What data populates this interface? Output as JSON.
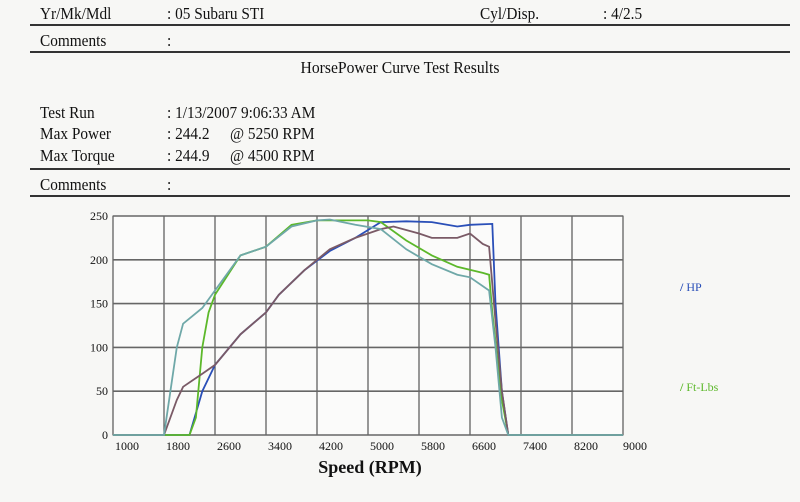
{
  "header": {
    "model_label": "Yr/Mk/Mdl",
    "model_value": ": 05 Subaru STI",
    "cyl_label": "Cyl/Disp.",
    "cyl_value": ": 4/2.5",
    "comments1_label": "Comments",
    "comments1_value": ":"
  },
  "title": "HorsePower Curve Test Results",
  "results": {
    "test_run_label": "Test Run",
    "test_run_value": ": 1/13/2007 9:06:33 AM",
    "max_power_label": "Max Power",
    "max_power_value": ": 244.2",
    "max_power_rpm": "@ 5250  RPM",
    "max_torque_label": "Max Torque",
    "max_torque_value": ": 244.9",
    "max_torque_rpm": "@ 4500  RPM",
    "comments2_label": "Comments",
    "comments2_value": ":"
  },
  "chart_data": {
    "type": "line",
    "xlabel": "Speed (RPM)",
    "ylabel": "",
    "xlim": [
      1000,
      9000
    ],
    "ylim": [
      0,
      250
    ],
    "xticks": [
      1000,
      1800,
      2600,
      3400,
      4200,
      5000,
      5800,
      6600,
      7400,
      8200,
      9000
    ],
    "yticks": [
      0,
      50,
      100,
      150,
      200,
      250
    ],
    "grid": true,
    "legend_placement": "right",
    "legend": [
      {
        "label": "HP",
        "color": "#2a4fb8"
      },
      {
        "label": "Ft-Lbs",
        "color": "#5cb82a"
      }
    ],
    "series": [
      {
        "name": "HP",
        "color": "#2a4fb8",
        "x": [
          1000,
          2200,
          2400,
          2600,
          3000,
          3400,
          3600,
          4000,
          4400,
          4800,
          5200,
          5600,
          6000,
          6400,
          6600,
          6950,
          7000,
          7100,
          7200,
          9000
        ],
        "y": [
          0,
          0,
          50,
          80,
          115,
          140,
          160,
          188,
          210,
          225,
          243,
          244,
          243,
          238,
          240,
          241,
          150,
          50,
          0,
          0
        ]
      },
      {
        "name": "Ft-Lbs",
        "color": "#5cb82a",
        "x": [
          1000,
          2200,
          2300,
          2400,
          2500,
          2600,
          3000,
          3400,
          3800,
          4200,
          5000,
          5200,
          5600,
          6000,
          6400,
          6800,
          6900,
          6950,
          7100,
          7200,
          9000
        ],
        "y": [
          0,
          0,
          20,
          100,
          140,
          160,
          205,
          215,
          240,
          245,
          245,
          243,
          222,
          205,
          192,
          185,
          183,
          140,
          40,
          0,
          0
        ]
      },
      {
        "color": "#7a5a66",
        "x": [
          1000,
          1800,
          2000,
          2100,
          2400,
          2600,
          3000,
          3400,
          3600,
          4000,
          4400,
          4800,
          5200,
          5400,
          5800,
          6000,
          6400,
          6600,
          6800,
          6900,
          7000,
          7100,
          7200,
          9000
        ],
        "y": [
          0,
          0,
          40,
          55,
          70,
          80,
          115,
          140,
          160,
          188,
          212,
          225,
          235,
          238,
          230,
          225,
          225,
          230,
          218,
          215,
          130,
          50,
          0,
          0
        ]
      },
      {
        "color": "#6fa8a8",
        "x": [
          1000,
          1800,
          2000,
          2100,
          2400,
          2600,
          3000,
          3400,
          3800,
          4200,
          4400,
          4800,
          5200,
          5600,
          6000,
          6400,
          6600,
          6900,
          7000,
          7100,
          7200,
          9000
        ],
        "y": [
          0,
          0,
          100,
          127,
          145,
          165,
          205,
          215,
          238,
          245,
          246,
          240,
          235,
          212,
          195,
          183,
          180,
          165,
          100,
          20,
          0,
          0
        ]
      }
    ]
  }
}
